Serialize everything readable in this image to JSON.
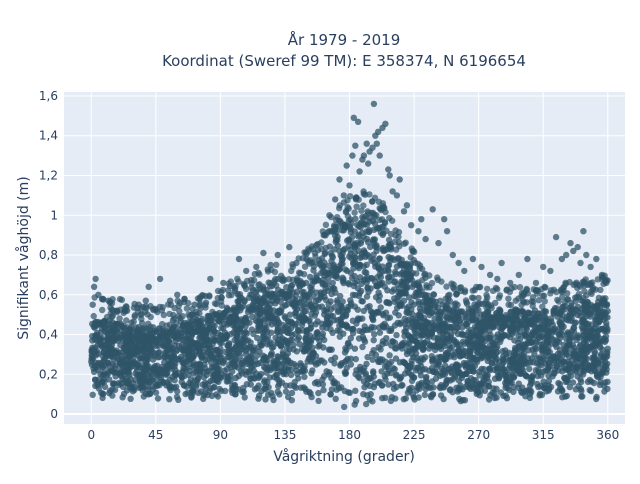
{
  "chart_data": {
    "type": "scatter",
    "title_line1": "År 1979 - 2019",
    "title_line2": "Koordinat (Sweref 99 TM): E 358374, N 6196654",
    "xlabel": "Vågriktning (grader)",
    "ylabel": "Signifikant våghöjd (m)",
    "xlim": [
      -19,
      372
    ],
    "ylim": [
      -0.05,
      1.62
    ],
    "x_ticks": [
      0,
      45,
      90,
      135,
      180,
      225,
      270,
      315,
      360
    ],
    "x_tick_labels": [
      "0",
      "45",
      "90",
      "135",
      "180",
      "225",
      "270",
      "315",
      "360"
    ],
    "y_ticks": [
      0,
      0.2,
      0.4,
      0.6,
      0.8,
      1.0,
      1.2,
      1.4,
      1.6
    ],
    "y_tick_labels": [
      "0",
      "0,2",
      "0,4",
      "0,6",
      "0,8",
      "1",
      "1,2",
      "1,4",
      "1,6"
    ],
    "grid": true,
    "background": "#e5ecf6",
    "marker_color": "#2f5468",
    "envelope": {
      "direction": [
        0,
        10,
        20,
        30,
        40,
        45,
        60,
        75,
        90,
        105,
        120,
        135,
        150,
        160,
        170,
        175,
        180,
        185,
        190,
        195,
        200,
        205,
        210,
        215,
        220,
        225,
        230,
        240,
        250,
        260,
        270,
        280,
        290,
        300,
        315,
        330,
        340,
        350,
        360
      ],
      "lower": [
        0.07,
        0.07,
        0.07,
        0.07,
        0.07,
        0.07,
        0.07,
        0.07,
        0.06,
        0.06,
        0.06,
        0.06,
        0.06,
        0.05,
        0.04,
        0.03,
        0.03,
        0.03,
        0.04,
        0.04,
        0.05,
        0.05,
        0.05,
        0.06,
        0.06,
        0.06,
        0.06,
        0.06,
        0.06,
        0.06,
        0.07,
        0.07,
        0.07,
        0.07,
        0.07,
        0.07,
        0.07,
        0.07,
        0.07
      ],
      "dense_upper": [
        0.47,
        0.47,
        0.46,
        0.44,
        0.43,
        0.42,
        0.45,
        0.48,
        0.52,
        0.58,
        0.62,
        0.65,
        0.7,
        0.8,
        0.9,
        0.95,
        0.98,
        1.0,
        1.0,
        1.0,
        0.98,
        0.92,
        0.85,
        0.8,
        0.75,
        0.7,
        0.62,
        0.57,
        0.55,
        0.53,
        0.52,
        0.52,
        0.52,
        0.52,
        0.53,
        0.54,
        0.56,
        0.58,
        0.58
      ]
    },
    "outliers": [
      {
        "x": 1,
        "y": 0.55
      },
      {
        "x": 2,
        "y": 0.64
      },
      {
        "x": 3,
        "y": 0.68
      },
      {
        "x": 5,
        "y": 0.6
      },
      {
        "x": 8,
        "y": 0.58
      },
      {
        "x": 12,
        "y": 0.57
      },
      {
        "x": 18,
        "y": 0.52
      },
      {
        "x": 25,
        "y": 0.52
      },
      {
        "x": 33,
        "y": 0.55
      },
      {
        "x": 38,
        "y": 0.57
      },
      {
        "x": 40,
        "y": 0.64
      },
      {
        "x": 48,
        "y": 0.68
      },
      {
        "x": 55,
        "y": 0.57
      },
      {
        "x": 60,
        "y": 0.6
      },
      {
        "x": 65,
        "y": 0.58
      },
      {
        "x": 72,
        "y": 0.55
      },
      {
        "x": 80,
        "y": 0.56
      },
      {
        "x": 83,
        "y": 0.68
      },
      {
        "x": 92,
        "y": 0.66
      },
      {
        "x": 100,
        "y": 0.62
      },
      {
        "x": 103,
        "y": 0.78
      },
      {
        "x": 108,
        "y": 0.72
      },
      {
        "x": 115,
        "y": 0.74
      },
      {
        "x": 120,
        "y": 0.81
      },
      {
        "x": 125,
        "y": 0.75
      },
      {
        "x": 130,
        "y": 0.8
      },
      {
        "x": 138,
        "y": 0.84
      },
      {
        "x": 143,
        "y": 0.76
      },
      {
        "x": 150,
        "y": 0.78
      },
      {
        "x": 157,
        "y": 0.85
      },
      {
        "x": 162,
        "y": 0.9
      },
      {
        "x": 166,
        "y": 1.0
      },
      {
        "x": 170,
        "y": 1.08
      },
      {
        "x": 173,
        "y": 1.18
      },
      {
        "x": 176,
        "y": 1.1
      },
      {
        "x": 178,
        "y": 1.25
      },
      {
        "x": 180,
        "y": 1.15
      },
      {
        "x": 182,
        "y": 1.3
      },
      {
        "x": 183,
        "y": 1.49
      },
      {
        "x": 184,
        "y": 1.35
      },
      {
        "x": 186,
        "y": 1.47
      },
      {
        "x": 187,
        "y": 1.22
      },
      {
        "x": 189,
        "y": 1.28
      },
      {
        "x": 190,
        "y": 1.3
      },
      {
        "x": 192,
        "y": 1.36
      },
      {
        "x": 193,
        "y": 1.26
      },
      {
        "x": 194,
        "y": 1.32
      },
      {
        "x": 196,
        "y": 1.34
      },
      {
        "x": 197,
        "y": 1.56
      },
      {
        "x": 198,
        "y": 1.4
      },
      {
        "x": 199,
        "y": 1.36
      },
      {
        "x": 200,
        "y": 1.42
      },
      {
        "x": 201,
        "y": 1.3
      },
      {
        "x": 203,
        "y": 1.44
      },
      {
        "x": 205,
        "y": 1.46
      },
      {
        "x": 207,
        "y": 1.23
      },
      {
        "x": 208,
        "y": 1.2
      },
      {
        "x": 210,
        "y": 1.12
      },
      {
        "x": 213,
        "y": 1.1
      },
      {
        "x": 215,
        "y": 1.18
      },
      {
        "x": 218,
        "y": 1.02
      },
      {
        "x": 220,
        "y": 1.05
      },
      {
        "x": 223,
        "y": 0.95
      },
      {
        "x": 228,
        "y": 0.92
      },
      {
        "x": 230,
        "y": 0.98
      },
      {
        "x": 233,
        "y": 0.88
      },
      {
        "x": 238,
        "y": 1.03
      },
      {
        "x": 242,
        "y": 0.86
      },
      {
        "x": 246,
        "y": 0.98
      },
      {
        "x": 248,
        "y": 0.92
      },
      {
        "x": 252,
        "y": 0.8
      },
      {
        "x": 256,
        "y": 0.76
      },
      {
        "x": 260,
        "y": 0.72
      },
      {
        "x": 266,
        "y": 0.78
      },
      {
        "x": 272,
        "y": 0.74
      },
      {
        "x": 278,
        "y": 0.7
      },
      {
        "x": 283,
        "y": 0.68
      },
      {
        "x": 286,
        "y": 0.76
      },
      {
        "x": 292,
        "y": 0.66
      },
      {
        "x": 298,
        "y": 0.7
      },
      {
        "x": 304,
        "y": 0.78
      },
      {
        "x": 310,
        "y": 0.66
      },
      {
        "x": 315,
        "y": 0.74
      },
      {
        "x": 320,
        "y": 0.72
      },
      {
        "x": 324,
        "y": 0.89
      },
      {
        "x": 328,
        "y": 0.78
      },
      {
        "x": 331,
        "y": 0.8
      },
      {
        "x": 334,
        "y": 0.86
      },
      {
        "x": 336,
        "y": 0.82
      },
      {
        "x": 339,
        "y": 0.84
      },
      {
        "x": 341,
        "y": 0.76
      },
      {
        "x": 343,
        "y": 0.92
      },
      {
        "x": 345,
        "y": 0.8
      },
      {
        "x": 348,
        "y": 0.74
      },
      {
        "x": 352,
        "y": 0.78
      },
      {
        "x": 356,
        "y": 0.7
      },
      {
        "x": 359,
        "y": 0.66
      }
    ]
  }
}
